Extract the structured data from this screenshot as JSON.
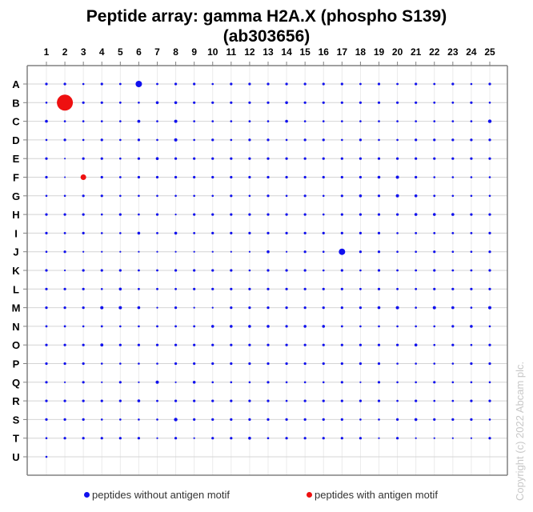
{
  "chart_data": {
    "type": "scatter",
    "title": "Peptide array:  gamma H2A.X (phospho S139)",
    "subtitle": "(ab303656)",
    "columns": [
      "1",
      "2",
      "3",
      "4",
      "5",
      "6",
      "7",
      "8",
      "9",
      "10",
      "11",
      "12",
      "13",
      "14",
      "15",
      "16",
      "17",
      "18",
      "19",
      "20",
      "21",
      "22",
      "23",
      "24",
      "25"
    ],
    "rows": [
      "A",
      "B",
      "C",
      "D",
      "E",
      "F",
      "G",
      "H",
      "I",
      "J",
      "K",
      "L",
      "M",
      "N",
      "O",
      "P",
      "Q",
      "R",
      "S",
      "T",
      "U"
    ],
    "xlabel": "",
    "ylabel": "",
    "grid": true,
    "legend_position": "bottom",
    "colors": {
      "without_motif": "#1010ee",
      "with_motif": "#ee1010"
    },
    "legend": [
      {
        "label": "peptides without antigen motif",
        "color": "#1010ee"
      },
      {
        "label": "peptides with antigen motif",
        "color": "#ee1010"
      }
    ],
    "red_spots": [
      {
        "row": "B",
        "col": 2,
        "radius": 10
      },
      {
        "row": "F",
        "col": 3,
        "radius": 3.5
      }
    ],
    "dot_radius": [
      [
        1.6,
        1.6,
        1.3,
        1.6,
        1.4,
        4.0,
        1.4,
        1.6,
        1.6,
        1.3,
        1.6,
        1.6,
        1.6,
        1.6,
        1.6,
        1.6,
        1.6,
        1.4,
        1.6,
        1.4,
        1.6,
        1.4,
        1.6,
        1.3,
        1.6
      ],
      [
        1.3,
        10,
        1.6,
        1.6,
        1.4,
        1.3,
        1.8,
        1.8,
        1.6,
        1.6,
        1.6,
        1.6,
        1.6,
        1.8,
        1.6,
        1.6,
        1.6,
        1.6,
        1.6,
        1.6,
        1.6,
        1.4,
        1.4,
        1.6,
        1.3
      ],
      [
        1.8,
        1.3,
        1.3,
        1.3,
        1.3,
        1.9,
        1.3,
        2.0,
        1.3,
        1.3,
        1.3,
        1.4,
        1.3,
        1.8,
        1.3,
        1.3,
        1.3,
        1.3,
        1.3,
        1.3,
        1.3,
        1.3,
        1.3,
        1.3,
        2.2
      ],
      [
        1.3,
        1.6,
        1.3,
        1.6,
        1.3,
        1.6,
        1.3,
        2.0,
        1.3,
        1.6,
        1.3,
        1.6,
        1.6,
        1.3,
        1.6,
        1.6,
        1.3,
        1.6,
        1.3,
        1.3,
        1.6,
        1.6,
        1.6,
        1.6,
        1.6
      ],
      [
        1.6,
        1.0,
        1.6,
        1.6,
        1.3,
        1.6,
        1.8,
        1.6,
        1.6,
        1.6,
        1.6,
        1.6,
        1.6,
        1.6,
        1.6,
        1.6,
        1.6,
        1.6,
        1.6,
        1.6,
        1.6,
        1.6,
        1.6,
        1.6,
        1.6
      ],
      [
        1.6,
        1.0,
        3.5,
        1.6,
        1.4,
        1.6,
        1.6,
        1.6,
        1.6,
        1.6,
        1.6,
        1.6,
        1.6,
        1.6,
        1.6,
        1.6,
        1.6,
        1.6,
        1.8,
        2.0,
        1.6,
        1.3,
        1.3,
        1.3,
        1.3
      ],
      [
        1.3,
        1.3,
        1.6,
        1.6,
        1.3,
        1.3,
        1.3,
        1.3,
        1.3,
        1.3,
        1.6,
        1.3,
        1.6,
        1.3,
        1.6,
        1.3,
        1.6,
        1.8,
        1.6,
        2.0,
        1.8,
        1.4,
        1.3,
        1.3,
        1.3
      ],
      [
        1.6,
        1.6,
        1.6,
        1.3,
        1.6,
        1.3,
        1.6,
        1.1,
        1.6,
        1.6,
        1.6,
        1.6,
        1.6,
        1.6,
        1.6,
        1.3,
        1.6,
        1.6,
        1.6,
        1.6,
        1.8,
        1.8,
        1.8,
        1.6,
        1.6
      ],
      [
        1.6,
        1.4,
        1.6,
        1.3,
        1.3,
        1.8,
        1.4,
        1.8,
        1.4,
        1.6,
        1.6,
        1.6,
        1.6,
        1.6,
        1.6,
        1.6,
        1.6,
        1.6,
        1.6,
        1.3,
        1.4,
        1.4,
        1.4,
        1.4,
        1.6
      ],
      [
        1.3,
        1.6,
        1.1,
        1.1,
        1.1,
        1.1,
        1.1,
        1.1,
        1.1,
        1.1,
        1.1,
        1.1,
        1.8,
        1.1,
        1.6,
        1.3,
        4.0,
        1.6,
        1.6,
        1.3,
        1.3,
        1.6,
        1.3,
        1.3,
        1.6
      ],
      [
        1.6,
        1.1,
        1.6,
        1.6,
        1.6,
        1.4,
        1.4,
        1.6,
        1.6,
        1.6,
        1.6,
        1.3,
        1.6,
        1.6,
        1.6,
        1.3,
        1.6,
        1.3,
        1.6,
        1.4,
        1.4,
        1.6,
        1.4,
        1.4,
        1.6
      ],
      [
        1.6,
        1.6,
        1.6,
        1.3,
        1.8,
        1.4,
        1.4,
        1.4,
        1.6,
        1.6,
        1.6,
        1.6,
        1.6,
        1.6,
        1.6,
        1.6,
        1.6,
        1.4,
        1.6,
        1.4,
        1.4,
        1.6,
        1.6,
        1.6,
        1.6
      ],
      [
        1.6,
        1.6,
        1.6,
        2.0,
        2.0,
        1.8,
        1.1,
        1.6,
        1.1,
        1.1,
        1.6,
        1.6,
        1.6,
        1.6,
        1.6,
        1.6,
        1.6,
        1.6,
        1.8,
        2.0,
        1.3,
        2.0,
        1.8,
        1.3,
        2.0
      ],
      [
        1.4,
        1.4,
        1.3,
        1.4,
        1.3,
        1.3,
        1.4,
        1.4,
        1.4,
        1.8,
        1.8,
        1.8,
        1.8,
        1.6,
        1.8,
        1.8,
        1.4,
        1.3,
        1.3,
        1.3,
        1.3,
        1.3,
        1.6,
        1.8,
        1.3
      ],
      [
        1.6,
        1.6,
        1.6,
        1.9,
        1.6,
        1.6,
        1.6,
        1.6,
        1.6,
        1.6,
        1.6,
        1.6,
        1.6,
        1.6,
        1.6,
        1.6,
        1.6,
        1.6,
        1.6,
        1.6,
        1.8,
        1.3,
        1.6,
        1.3,
        1.6
      ],
      [
        1.6,
        1.6,
        1.6,
        1.3,
        1.3,
        1.3,
        1.3,
        1.6,
        1.6,
        1.6,
        1.6,
        1.6,
        1.6,
        1.6,
        1.6,
        1.6,
        1.6,
        1.6,
        1.6,
        1.3,
        1.3,
        1.3,
        1.3,
        1.6,
        1.6
      ],
      [
        1.6,
        1.1,
        1.6,
        1.1,
        1.6,
        1.1,
        2.0,
        1.1,
        1.8,
        1.3,
        1.3,
        1.3,
        1.6,
        1.3,
        1.3,
        1.3,
        1.6,
        1.1,
        1.6,
        1.3,
        1.3,
        1.6,
        1.3,
        1.3,
        1.3
      ],
      [
        1.6,
        1.6,
        1.6,
        1.6,
        1.6,
        1.8,
        1.4,
        1.6,
        1.6,
        1.6,
        1.6,
        1.6,
        1.6,
        1.3,
        1.6,
        1.6,
        1.6,
        1.6,
        1.6,
        1.3,
        1.6,
        1.3,
        1.3,
        1.6,
        1.6
      ],
      [
        1.6,
        1.6,
        1.6,
        1.3,
        1.3,
        1.3,
        1.3,
        2.2,
        1.6,
        1.6,
        1.6,
        1.6,
        1.6,
        1.6,
        1.6,
        1.6,
        1.6,
        1.3,
        1.3,
        1.6,
        1.8,
        1.6,
        1.6,
        1.6,
        1.3
      ],
      [
        1.3,
        1.6,
        1.6,
        1.6,
        1.6,
        1.6,
        1.1,
        1.6,
        1.1,
        1.6,
        1.6,
        1.8,
        1.3,
        1.6,
        1.6,
        1.6,
        1.6,
        1.6,
        1.1,
        1.6,
        1.1,
        1.1,
        1.1,
        1.1,
        1.6
      ],
      [
        1.3,
        0,
        0,
        0,
        0,
        0,
        0,
        0,
        0,
        0,
        0,
        0,
        0,
        0,
        0,
        0,
        0,
        0,
        0,
        0,
        0,
        0,
        0,
        0,
        0
      ]
    ],
    "notable_spots": [
      {
        "row": "B",
        "col": 2,
        "color": "red",
        "relative_intensity": "very high"
      },
      {
        "row": "F",
        "col": 3,
        "color": "red",
        "relative_intensity": "moderate"
      },
      {
        "row": "A",
        "col": 6,
        "color": "blue",
        "relative_intensity": "moderate"
      },
      {
        "row": "J",
        "col": 17,
        "color": "blue",
        "relative_intensity": "moderate"
      }
    ]
  },
  "copyright": "Copyright (c) 2022 Abcam plc."
}
